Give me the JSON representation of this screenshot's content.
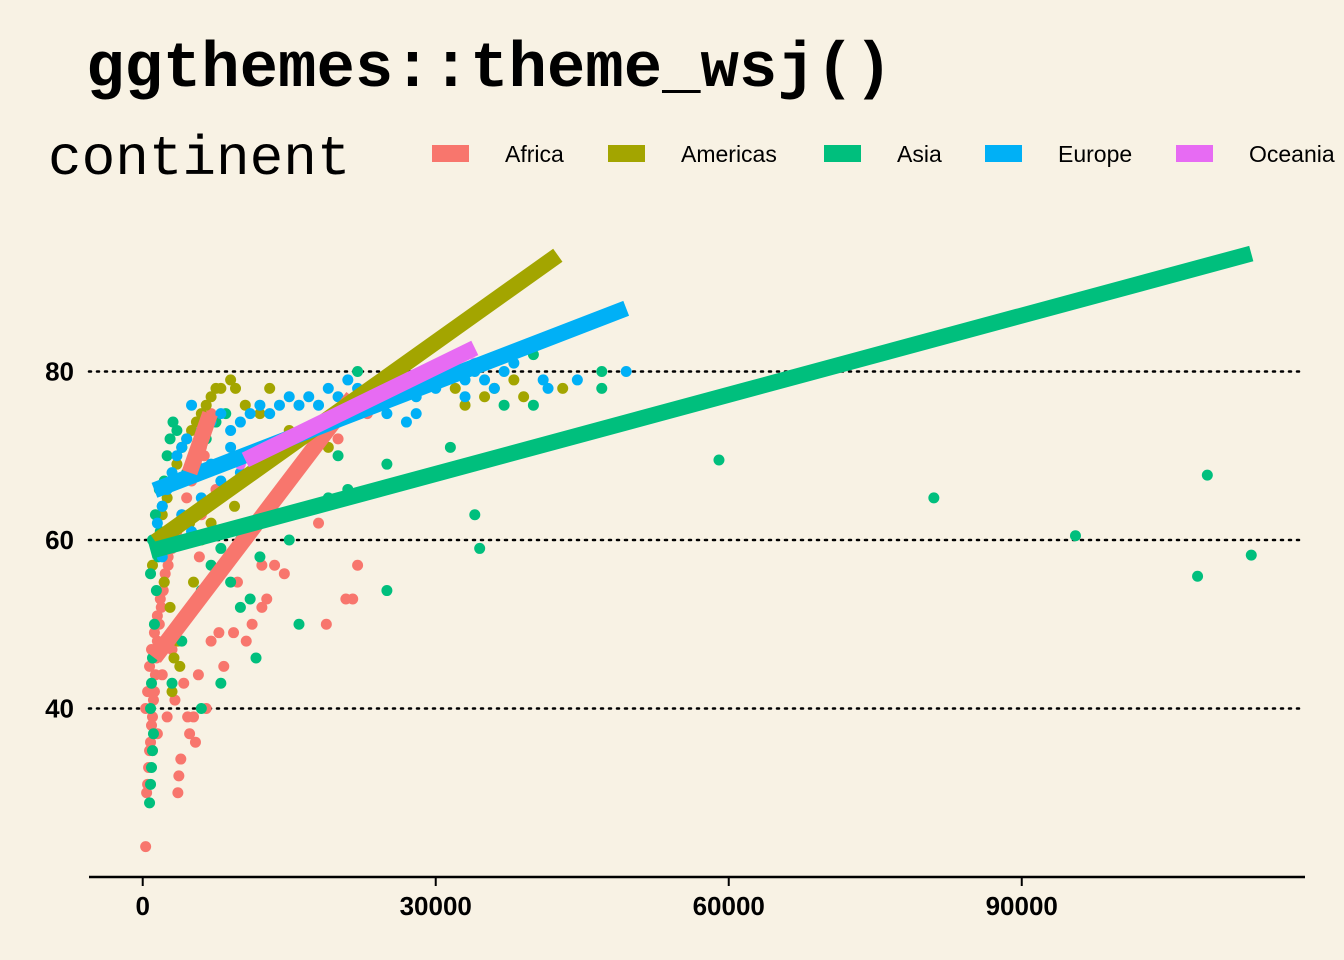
{
  "chart_data": {
    "type": "scatter",
    "title": "ggthemes::theme_wsj()",
    "legend": {
      "title": "continent",
      "position": "top",
      "entries": [
        {
          "name": "Africa",
          "color": "#f8766d"
        },
        {
          "name": "Americas",
          "color": "#a3a500"
        },
        {
          "name": "Asia",
          "color": "#00bf7d"
        },
        {
          "name": "Europe",
          "color": "#00b0f6"
        },
        {
          "name": "Oceania",
          "color": "#e76bf3"
        }
      ]
    },
    "x_axis": {
      "label": "",
      "ticks": [
        0,
        30000,
        60000,
        90000
      ],
      "tick_labels": [
        "0",
        "30000",
        "60000",
        "90000"
      ],
      "range": [
        -5500,
        119000
      ]
    },
    "y_axis": {
      "label": "",
      "ticks": [
        40,
        60,
        80
      ],
      "tick_labels": [
        "40",
        "60",
        "80"
      ],
      "range": [
        20,
        100
      ],
      "gridlines": "dotted"
    },
    "series": [
      {
        "name": "Africa",
        "color": "#f8766d",
        "points": [
          [
            300,
            23.6
          ],
          [
            400,
            30
          ],
          [
            500,
            31
          ],
          [
            600,
            33
          ],
          [
            700,
            35
          ],
          [
            800,
            36
          ],
          [
            900,
            38
          ],
          [
            1000,
            39
          ],
          [
            1100,
            41
          ],
          [
            1200,
            42
          ],
          [
            1300,
            44
          ],
          [
            1400,
            46
          ],
          [
            1500,
            48
          ],
          [
            1700,
            50
          ],
          [
            1900,
            52
          ],
          [
            2100,
            54
          ],
          [
            2300,
            56
          ],
          [
            2600,
            58
          ],
          [
            300,
            40
          ],
          [
            500,
            42
          ],
          [
            700,
            45
          ],
          [
            900,
            47
          ],
          [
            1200,
            49
          ],
          [
            1500,
            51
          ],
          [
            1800,
            53
          ],
          [
            2200,
            55
          ],
          [
            2600,
            57
          ],
          [
            3000,
            59
          ],
          [
            3500,
            61
          ],
          [
            4000,
            63
          ],
          [
            4500,
            65
          ],
          [
            5000,
            67
          ],
          [
            5500,
            69
          ],
          [
            6000,
            71
          ],
          [
            6500,
            73
          ],
          [
            7000,
            75
          ],
          [
            3600,
            30
          ],
          [
            3700,
            32
          ],
          [
            3900,
            34
          ],
          [
            4800,
            37
          ],
          [
            5400,
            36
          ],
          [
            4600,
            39
          ],
          [
            5200,
            39
          ],
          [
            5700,
            44
          ],
          [
            6500,
            40
          ],
          [
            7000,
            48
          ],
          [
            7800,
            49
          ],
          [
            8300,
            45
          ],
          [
            9300,
            49
          ],
          [
            10600,
            48
          ],
          [
            11200,
            50
          ],
          [
            12200,
            52
          ],
          [
            12700,
            53
          ],
          [
            12200,
            57
          ],
          [
            13500,
            57
          ],
          [
            14500,
            56
          ],
          [
            18000,
            62
          ],
          [
            18800,
            50
          ],
          [
            20800,
            53
          ],
          [
            21500,
            53
          ],
          [
            22000,
            57
          ],
          [
            9700,
            55
          ],
          [
            5800,
            58
          ],
          [
            3000,
            47
          ],
          [
            2000,
            44
          ],
          [
            1000,
            35
          ],
          [
            6000,
            63
          ],
          [
            7500,
            66
          ],
          [
            6300,
            70
          ],
          [
            20000,
            72
          ],
          [
            23000,
            75
          ],
          [
            1500,
            37
          ],
          [
            2500,
            39
          ],
          [
            3300,
            41
          ],
          [
            4200,
            43
          ]
        ]
      },
      {
        "name": "Americas",
        "color": "#a3a500",
        "points": [
          [
            1000,
            57
          ],
          [
            1500,
            60
          ],
          [
            2000,
            63
          ],
          [
            2500,
            65
          ],
          [
            3000,
            67
          ],
          [
            3500,
            69
          ],
          [
            4000,
            71
          ],
          [
            4500,
            72
          ],
          [
            5000,
            73
          ],
          [
            5500,
            74
          ],
          [
            6000,
            75
          ],
          [
            6500,
            76
          ],
          [
            7000,
            77
          ],
          [
            7500,
            78
          ],
          [
            8000,
            78
          ],
          [
            9000,
            79
          ],
          [
            9500,
            78
          ],
          [
            10500,
            76
          ],
          [
            12000,
            75
          ],
          [
            13000,
            78
          ],
          [
            15000,
            73
          ],
          [
            17000,
            70
          ],
          [
            18500,
            72
          ],
          [
            20000,
            74
          ],
          [
            22000,
            75
          ],
          [
            24000,
            76
          ],
          [
            26000,
            77
          ],
          [
            28000,
            78
          ],
          [
            30000,
            79
          ],
          [
            32000,
            78
          ],
          [
            33000,
            76
          ],
          [
            35000,
            77
          ],
          [
            36000,
            78
          ],
          [
            38000,
            79
          ],
          [
            39000,
            77
          ],
          [
            43000,
            78
          ],
          [
            3000,
            42
          ],
          [
            3200,
            46
          ],
          [
            3600,
            48
          ],
          [
            4200,
            51
          ],
          [
            3800,
            45
          ],
          [
            5200,
            55
          ],
          [
            2800,
            52
          ],
          [
            6000,
            60
          ],
          [
            7000,
            62
          ],
          [
            9400,
            64
          ],
          [
            12000,
            69
          ],
          [
            19000,
            71
          ],
          [
            2200,
            55
          ],
          [
            4800,
            62
          ]
        ]
      },
      {
        "name": "Asia",
        "color": "#00bf7d",
        "points": [
          [
            700,
            28.8
          ],
          [
            800,
            31
          ],
          [
            900,
            33
          ],
          [
            1000,
            35
          ],
          [
            1100,
            37
          ],
          [
            800,
            40
          ],
          [
            900,
            43
          ],
          [
            1000,
            46
          ],
          [
            1200,
            50
          ],
          [
            1400,
            54
          ],
          [
            1600,
            58
          ],
          [
            1800,
            61
          ],
          [
            2000,
            64
          ],
          [
            2200,
            67
          ],
          [
            2500,
            70
          ],
          [
            2800,
            72
          ],
          [
            3100,
            74
          ],
          [
            3500,
            73
          ],
          [
            4000,
            71
          ],
          [
            800,
            56
          ],
          [
            1000,
            60
          ],
          [
            1300,
            63
          ],
          [
            1700,
            66
          ],
          [
            4500,
            68
          ],
          [
            5500,
            70
          ],
          [
            6500,
            72
          ],
          [
            7500,
            74
          ],
          [
            8500,
            75
          ],
          [
            3000,
            43
          ],
          [
            4000,
            48
          ],
          [
            5000,
            52
          ],
          [
            6000,
            54
          ],
          [
            7000,
            57
          ],
          [
            8000,
            59
          ],
          [
            9000,
            55
          ],
          [
            10000,
            52
          ],
          [
            11000,
            53
          ],
          [
            11600,
            46
          ],
          [
            12000,
            58
          ],
          [
            15000,
            60
          ],
          [
            16000,
            50
          ],
          [
            19000,
            65
          ],
          [
            21000,
            66
          ],
          [
            25000,
            54
          ],
          [
            25000,
            69
          ],
          [
            31500,
            71
          ],
          [
            34000,
            63
          ],
          [
            34500,
            59
          ],
          [
            37000,
            76
          ],
          [
            40000,
            82
          ],
          [
            47000,
            80
          ],
          [
            47000,
            78
          ],
          [
            40000,
            76
          ],
          [
            20000,
            70
          ],
          [
            22000,
            80
          ],
          [
            10000,
            60
          ],
          [
            12000,
            62
          ],
          [
            6000,
            40
          ],
          [
            8000,
            43
          ],
          [
            59000,
            69.5
          ],
          [
            81000,
            65
          ],
          [
            95500,
            60.5
          ],
          [
            108000,
            55.7
          ],
          [
            109000,
            67.7
          ],
          [
            113500,
            58.2
          ]
        ]
      },
      {
        "name": "Europe",
        "color": "#00b0f6",
        "points": [
          [
            1500,
            62
          ],
          [
            2000,
            64
          ],
          [
            2500,
            66
          ],
          [
            3000,
            68
          ],
          [
            3500,
            70
          ],
          [
            4000,
            71
          ],
          [
            4500,
            72
          ],
          [
            5000,
            76
          ],
          [
            6000,
            73
          ],
          [
            7000,
            74
          ],
          [
            8000,
            75
          ],
          [
            9000,
            73
          ],
          [
            10000,
            74
          ],
          [
            11000,
            75
          ],
          [
            12000,
            76
          ],
          [
            13000,
            75
          ],
          [
            14000,
            76
          ],
          [
            15000,
            77
          ],
          [
            16000,
            76
          ],
          [
            17000,
            77
          ],
          [
            18000,
            76
          ],
          [
            19000,
            78
          ],
          [
            20000,
            77
          ],
          [
            21000,
            79
          ],
          [
            22000,
            78
          ],
          [
            23000,
            77
          ],
          [
            24000,
            76
          ],
          [
            25000,
            78
          ],
          [
            26000,
            77
          ],
          [
            27000,
            78
          ],
          [
            28000,
            77
          ],
          [
            29000,
            79
          ],
          [
            30000,
            78
          ],
          [
            31000,
            79
          ],
          [
            32000,
            80
          ],
          [
            33000,
            79
          ],
          [
            34000,
            80
          ],
          [
            35000,
            79
          ],
          [
            36000,
            78
          ],
          [
            37000,
            80
          ],
          [
            38000,
            81
          ],
          [
            41000,
            79
          ],
          [
            44500,
            79
          ],
          [
            49500,
            80
          ],
          [
            27000,
            74
          ],
          [
            25000,
            75
          ],
          [
            3000,
            60
          ],
          [
            2000,
            58
          ],
          [
            4000,
            63
          ],
          [
            6000,
            65
          ],
          [
            5000,
            61
          ],
          [
            8000,
            67
          ],
          [
            10000,
            68
          ],
          [
            12000,
            70
          ],
          [
            15000,
            72
          ],
          [
            7000,
            69
          ],
          [
            9000,
            71
          ],
          [
            28000,
            75
          ],
          [
            33000,
            77
          ],
          [
            41500,
            78
          ]
        ]
      },
      {
        "name": "Oceania",
        "color": "#e76bf3",
        "points": [
          [
            10000,
            69
          ],
          [
            11000,
            70
          ],
          [
            12000,
            71
          ],
          [
            13000,
            71
          ],
          [
            15000,
            72
          ],
          [
            17000,
            73
          ],
          [
            19000,
            74
          ],
          [
            21000,
            75
          ],
          [
            23000,
            77
          ],
          [
            25000,
            78
          ],
          [
            26000,
            80
          ],
          [
            28000,
            79
          ],
          [
            30000,
            80
          ],
          [
            32000,
            81
          ],
          [
            34000,
            81
          ]
        ]
      }
    ],
    "trend_lines": [
      {
        "name": "Africa",
        "color": "#f8766d",
        "x": [
          1200,
          21500
        ],
        "y": [
          46,
          77
        ]
      },
      {
        "name": "Americas",
        "color": "#a3a500",
        "x": [
          1300,
          42500
        ],
        "y": [
          59.8,
          93.8
        ]
      },
      {
        "name": "Asia",
        "color": "#00bf7d",
        "x": [
          800,
          113500
        ],
        "y": [
          58.7,
          94
        ]
      },
      {
        "name": "Europe",
        "color": "#00b0f6",
        "x": [
          1200,
          49500
        ],
        "y": [
          65.9,
          87.5
        ]
      },
      {
        "name": "Oceania",
        "color": "#e76bf3",
        "x": [
          10500,
          34000
        ],
        "y": [
          69.5,
          82.8
        ]
      },
      {
        "name": "Africa",
        "color": "#f8766d",
        "x": [
          4800,
          6900
        ],
        "y": [
          68,
          75
        ]
      }
    ]
  }
}
